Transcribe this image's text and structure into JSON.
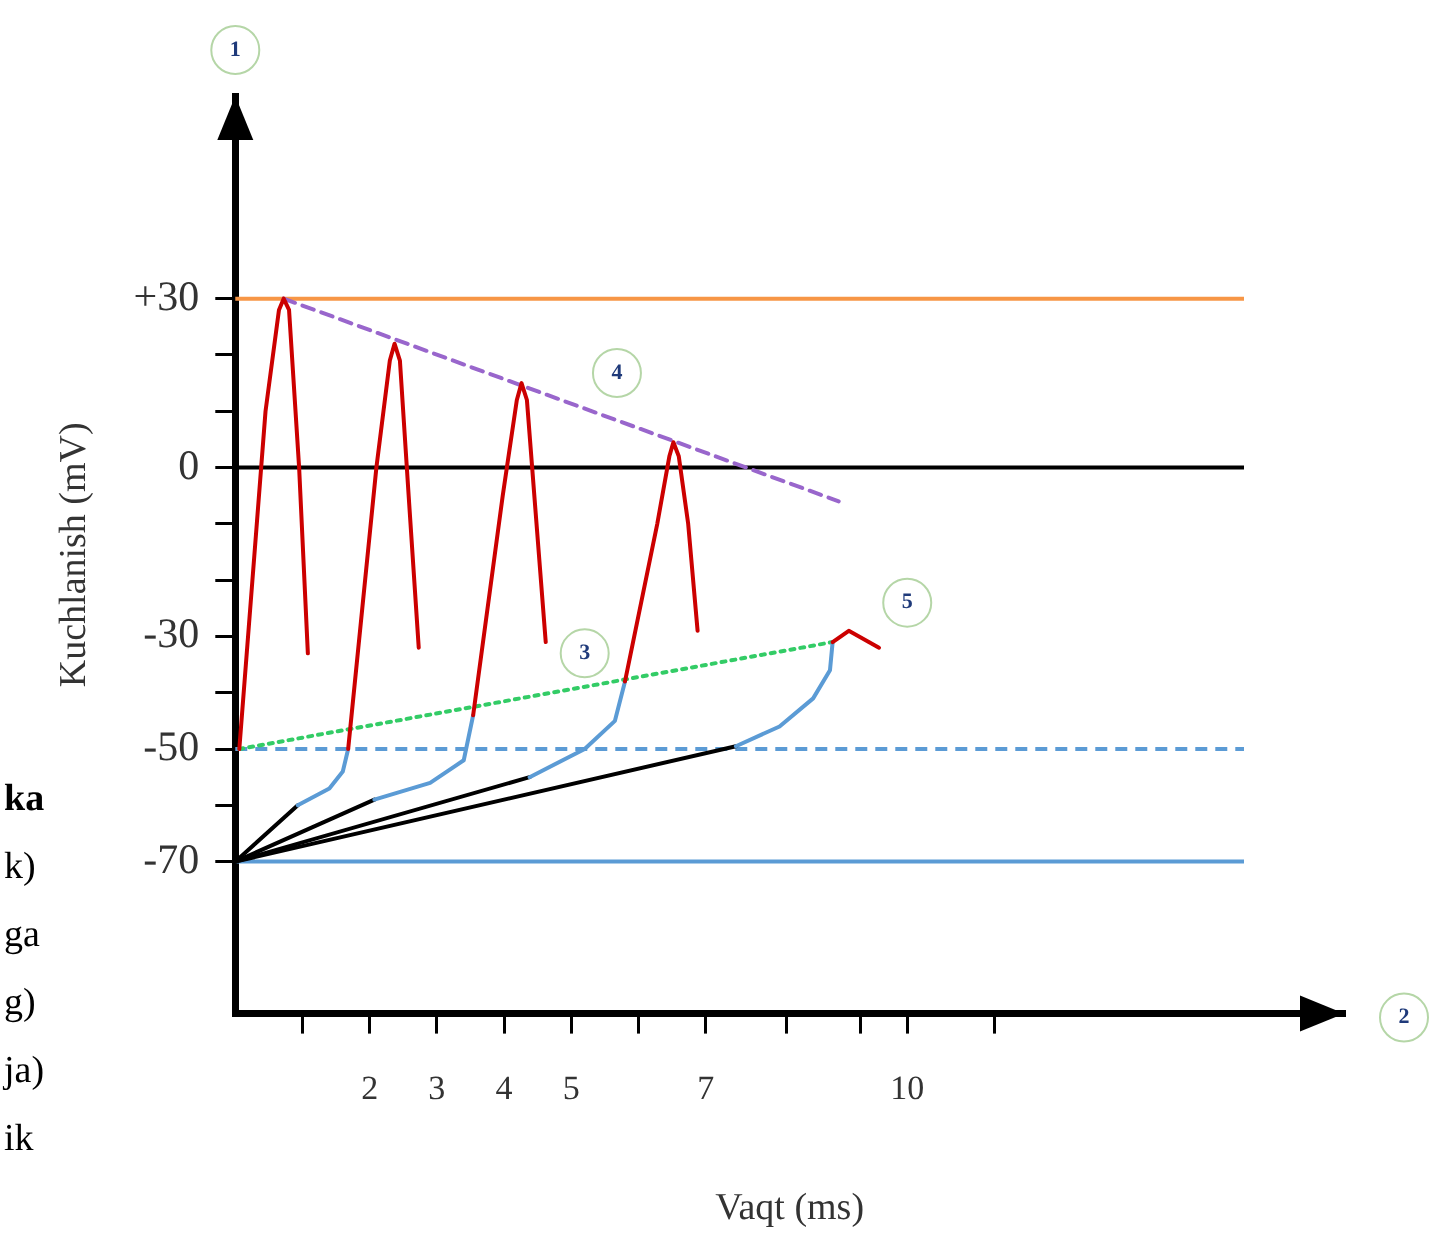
{
  "chart_data": {
    "type": "line",
    "xlabel": "Vaqt (ms)",
    "ylabel": "Kuchlanish (mV)",
    "xlim": [
      0,
      16.5
    ],
    "ylim": [
      -97,
      66
    ],
    "xticks": [
      {
        "value": 1,
        "label": null
      },
      2,
      3,
      4,
      5,
      {
        "value": 6,
        "label": null
      },
      7,
      {
        "value": 8.2,
        "label": null
      },
      {
        "value": 9.3,
        "label": null
      },
      10,
      {
        "value": 11.3,
        "label": null
      }
    ],
    "yticks": [
      {
        "value": 30,
        "label": "+30"
      },
      {
        "value": 20,
        "label": null
      },
      {
        "value": 10,
        "label": null
      },
      0,
      {
        "value": -10,
        "label": null
      },
      {
        "value": -20,
        "label": null
      },
      -30,
      {
        "value": -40,
        "label": null
      },
      -50,
      {
        "value": -60,
        "label": null
      },
      -70
    ],
    "grid": false,
    "marker": "none",
    "series": [
      {
        "type": "line",
        "color": "#cc0000",
        "line_style": "solid",
        "x": [
          0.06,
          0.45,
          0.65,
          0.72,
          0.8,
          0.95,
          1.08
        ],
        "values": [
          -50,
          10,
          28,
          30,
          28,
          0,
          -33
        ]
      },
      {
        "type": "line",
        "color": "#cc0000",
        "line_style": "solid",
        "x": [
          1.68,
          2.1,
          2.3,
          2.37,
          2.45,
          2.58,
          2.73
        ],
        "values": [
          -50,
          0,
          19,
          22,
          19,
          -5,
          -32
        ]
      },
      {
        "type": "line",
        "color": "#cc0000",
        "line_style": "solid",
        "x": [
          3.54,
          3.98,
          4.19,
          4.26,
          4.34,
          4.47,
          4.62
        ],
        "values": [
          -44,
          -5,
          12,
          15,
          12,
          -8,
          -31
        ]
      },
      {
        "type": "line",
        "color": "#cc0000",
        "line_style": "solid",
        "x": [
          5.8,
          6.28,
          6.46,
          6.52,
          6.6,
          6.74,
          6.88
        ],
        "values": [
          -38,
          -10,
          2,
          4.5,
          2,
          -10,
          -29
        ]
      },
      {
        "type": "line",
        "color": "#cc0000",
        "line_style": "solid",
        "x": [
          8.89,
          9.13,
          9.58
        ],
        "values": [
          -31,
          -29,
          -32
        ]
      },
      {
        "type": "line",
        "color": "#5b9bd5",
        "line_style": "solid",
        "x": [
          0.93,
          1.4,
          1.6,
          1.68
        ],
        "values": [
          -60,
          -57,
          -54,
          -50
        ]
      },
      {
        "type": "line",
        "color": "#5b9bd5",
        "line_style": "solid",
        "x": [
          2.07,
          2.9,
          3.4,
          3.54
        ],
        "values": [
          -59,
          -56,
          -52,
          -44
        ]
      },
      {
        "type": "line",
        "color": "#5b9bd5",
        "line_style": "solid",
        "x": [
          4.38,
          5.2,
          5.65,
          5.8
        ],
        "values": [
          -55,
          -50,
          -45,
          -38
        ]
      },
      {
        "type": "line",
        "color": "#5b9bd5",
        "line_style": "solid",
        "x": [
          7.45,
          8.1,
          8.6,
          8.85,
          8.89
        ],
        "values": [
          -49.5,
          -46,
          -41,
          -36,
          -31
        ]
      },
      {
        "type": "line",
        "color": "#000000",
        "line_style": "solid",
        "x": [
          0,
          0.93
        ],
        "values": [
          -70,
          -60
        ]
      },
      {
        "type": "line",
        "color": "#000000",
        "line_style": "solid",
        "x": [
          0,
          2.07
        ],
        "values": [
          -70,
          -59
        ]
      },
      {
        "type": "line",
        "color": "#000000",
        "line_style": "solid",
        "x": [
          0,
          4.38
        ],
        "values": [
          -70,
          -55
        ]
      },
      {
        "type": "line",
        "color": "#000000",
        "line_style": "solid",
        "x": [
          0,
          7.45
        ],
        "values": [
          -70,
          -49.5
        ]
      },
      {
        "type": "line",
        "color": "#9966cc",
        "line_style": "dashed",
        "x": [
          0.72,
          8.98
        ],
        "values": [
          30,
          -6
        ]
      },
      {
        "type": "line",
        "color": "#33cc66",
        "line_style": "dotted",
        "x": [
          0.06,
          8.89
        ],
        "values": [
          -50,
          -31
        ]
      }
    ],
    "ref_lines": [
      {
        "axis": "y",
        "value": 30,
        "label": null,
        "color": "#f79646",
        "line_style": "solid"
      },
      {
        "axis": "y",
        "value": 0,
        "label": null,
        "color": "#000000",
        "line_style": "solid"
      },
      {
        "axis": "y",
        "value": -50,
        "label": null,
        "color": "#5b9bd5",
        "line_style": "dashed"
      },
      {
        "axis": "y",
        "value": -70,
        "label": null,
        "color": "#5b9bd5",
        "line_style": "solid"
      }
    ],
    "annotations": [
      "1",
      "2",
      {
        "text": "3",
        "x": 5.2,
        "y": -33
      },
      {
        "text": "4",
        "x": 5.68,
        "y": 16.8
      },
      {
        "text": "5",
        "x": 10,
        "y": -24
      },
      "ka",
      "k)",
      "ga",
      "g)",
      "ja)",
      "ik"
    ]
  }
}
